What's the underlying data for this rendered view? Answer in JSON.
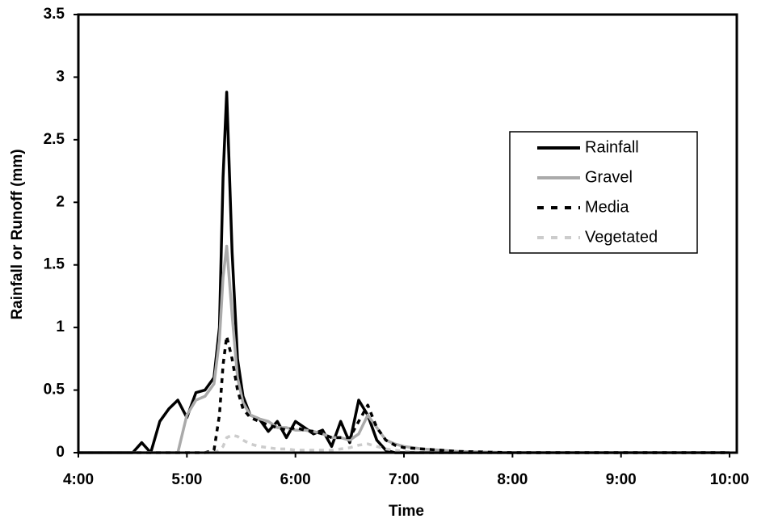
{
  "chart_data": {
    "type": "line",
    "x_label": "Time",
    "y_label": "Rainfall or Runoff (mm)",
    "x": [
      "4:00",
      "4:30",
      "4:35",
      "4:40",
      "4:45",
      "4:50",
      "4:55",
      "5:00",
      "5:05",
      "5:10",
      "5:15",
      "5:18",
      "5:20",
      "5:22",
      "5:25",
      "5:28",
      "5:31",
      "5:35",
      "5:40",
      "5:45",
      "5:50",
      "5:55",
      "6:00",
      "6:05",
      "6:10",
      "6:15",
      "6:20",
      "6:25",
      "6:30",
      "6:35",
      "6:40",
      "6:45",
      "6:50",
      "6:55",
      "7:00",
      "7:10",
      "7:20",
      "7:30",
      "8:00",
      "9:00",
      "10:00"
    ],
    "series": [
      {
        "name": "Rainfall",
        "color": "#000000",
        "dash": false,
        "values": [
          0,
          0,
          0.08,
          0,
          0.25,
          0.35,
          0.42,
          0.28,
          0.48,
          0.5,
          0.6,
          1.0,
          2.2,
          2.88,
          1.6,
          0.75,
          0.45,
          0.3,
          0.27,
          0.17,
          0.25,
          0.12,
          0.25,
          0.2,
          0.15,
          0.18,
          0.05,
          0.25,
          0.08,
          0.42,
          0.3,
          0.1,
          0.02,
          0,
          0,
          0,
          0,
          0,
          0,
          0,
          0
        ]
      },
      {
        "name": "Gravel",
        "color": "#aaaaaa",
        "dash": false,
        "values": [
          0,
          0,
          0,
          0,
          0,
          0,
          0,
          0.3,
          0.42,
          0.45,
          0.55,
          0.9,
          1.4,
          1.65,
          1.1,
          0.6,
          0.4,
          0.3,
          0.27,
          0.25,
          0.2,
          0.2,
          0.18,
          0.18,
          0.17,
          0.15,
          0.12,
          0.12,
          0.1,
          0.15,
          0.3,
          0.2,
          0.1,
          0.07,
          0.05,
          0.03,
          0.02,
          0.01,
          0,
          0,
          0
        ]
      },
      {
        "name": "Media",
        "color": "#000000",
        "dash": true,
        "values": [
          0,
          0,
          0,
          0,
          0,
          0,
          0,
          0,
          0,
          0,
          0.02,
          0.3,
          0.7,
          0.93,
          0.75,
          0.5,
          0.35,
          0.28,
          0.25,
          0.22,
          0.2,
          0.18,
          0.2,
          0.18,
          0.17,
          0.15,
          0.12,
          0.12,
          0.12,
          0.25,
          0.38,
          0.2,
          0.1,
          0.06,
          0.04,
          0.03,
          0.02,
          0.01,
          0,
          0,
          0
        ]
      },
      {
        "name": "Vegetated",
        "color": "#cccccc",
        "dash": true,
        "values": [
          0,
          0,
          0,
          0,
          0,
          0,
          0,
          0,
          0,
          0,
          0,
          0.02,
          0.05,
          0.12,
          0.14,
          0.13,
          0.1,
          0.07,
          0.05,
          0.04,
          0.03,
          0.03,
          0.02,
          0.02,
          0.02,
          0.02,
          0.02,
          0.03,
          0.04,
          0.06,
          0.07,
          0.05,
          0.03,
          0.02,
          0.01,
          0,
          0,
          0,
          0,
          0,
          0
        ]
      }
    ],
    "xlim": [
      "4:00",
      "10:04"
    ],
    "xticks": [
      "4:00",
      "5:00",
      "6:00",
      "7:00",
      "8:00",
      "9:00",
      "10:00"
    ],
    "ylim": [
      0,
      3.5
    ],
    "yticks": [
      0,
      0.5,
      1,
      1.5,
      2,
      2.5,
      3,
      3.5
    ]
  }
}
